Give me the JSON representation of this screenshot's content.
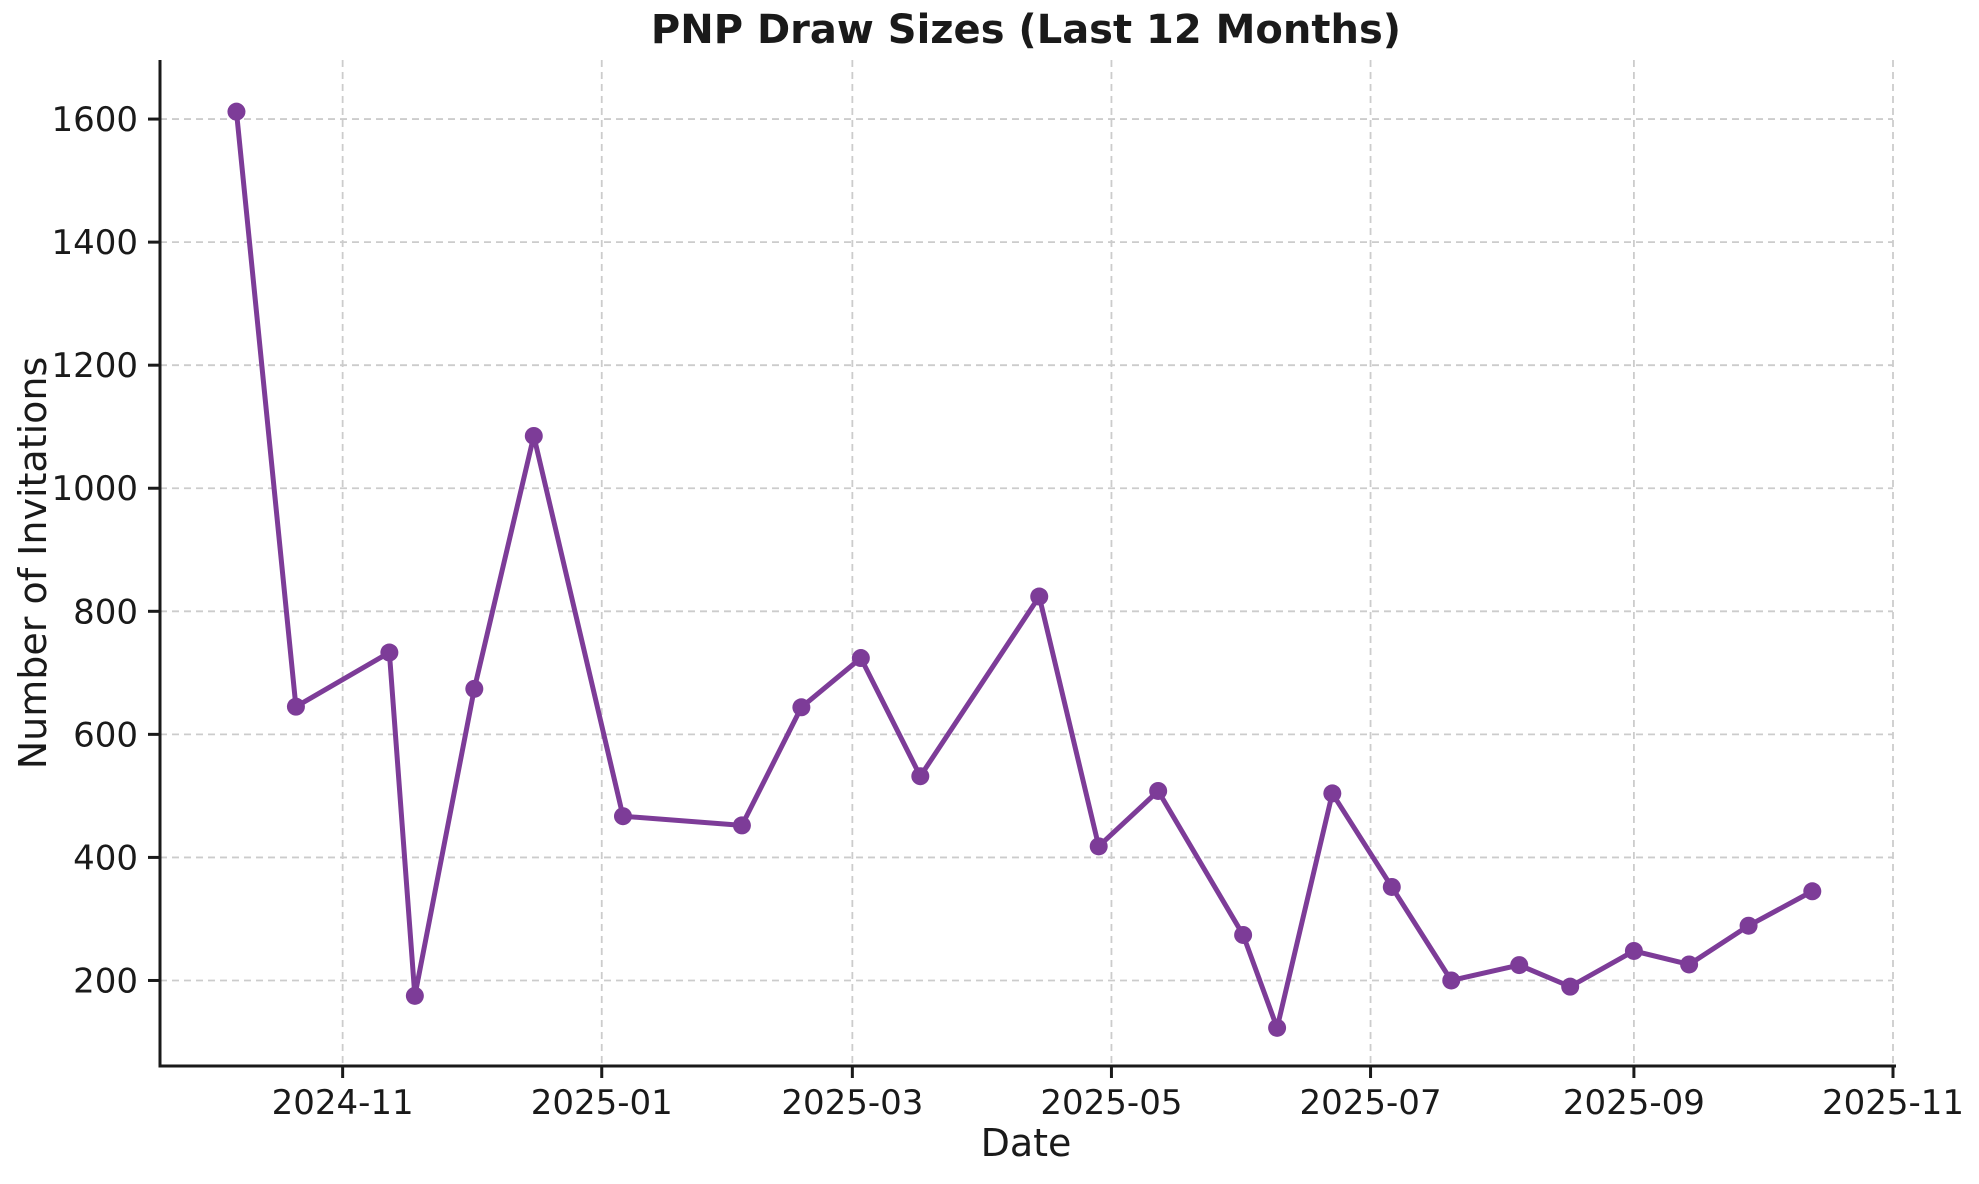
{
  "chart_data": {
    "type": "line",
    "title": "PNP Draw Sizes (Last 12 Months)",
    "xlabel": "Date",
    "ylabel": "Number of Invitations",
    "series": [
      {
        "name": "PNP draw size",
        "color": "#7d3c98",
        "x": [
          "2024-10-07",
          "2024-10-21",
          "2024-11-12",
          "2024-11-18",
          "2024-12-02",
          "2024-12-16",
          "2025-01-06",
          "2025-02-03",
          "2025-02-17",
          "2025-03-03",
          "2025-03-17",
          "2025-04-14",
          "2025-04-28",
          "2025-05-12",
          "2025-06-01",
          "2025-06-09",
          "2025-06-22",
          "2025-07-06",
          "2025-07-20",
          "2025-08-05",
          "2025-08-17",
          "2025-09-01",
          "2025-09-14",
          "2025-09-28",
          "2025-10-13"
        ],
        "values": [
          1612,
          645,
          733,
          175,
          674,
          1085,
          467,
          452,
          644,
          724,
          532,
          824,
          418,
          508,
          274,
          123,
          504,
          352,
          200,
          225,
          190,
          248,
          226,
          289,
          345
        ]
      }
    ],
    "xticks": [
      "2024-11",
      "2025-01",
      "2025-03",
      "2025-05",
      "2025-07",
      "2025-09",
      "2025-11"
    ],
    "yticks": [
      200,
      400,
      600,
      800,
      1000,
      1200,
      1400,
      1600
    ],
    "xlim": [
      "2024-09-19",
      "2025-11-01"
    ],
    "ylim": [
      61,
      1696
    ],
    "grid": true,
    "grid_style": "dashed",
    "grid_color": "#cccccc",
    "spine_color": "#1a1a1a",
    "legend": "none",
    "marker": "circle"
  }
}
